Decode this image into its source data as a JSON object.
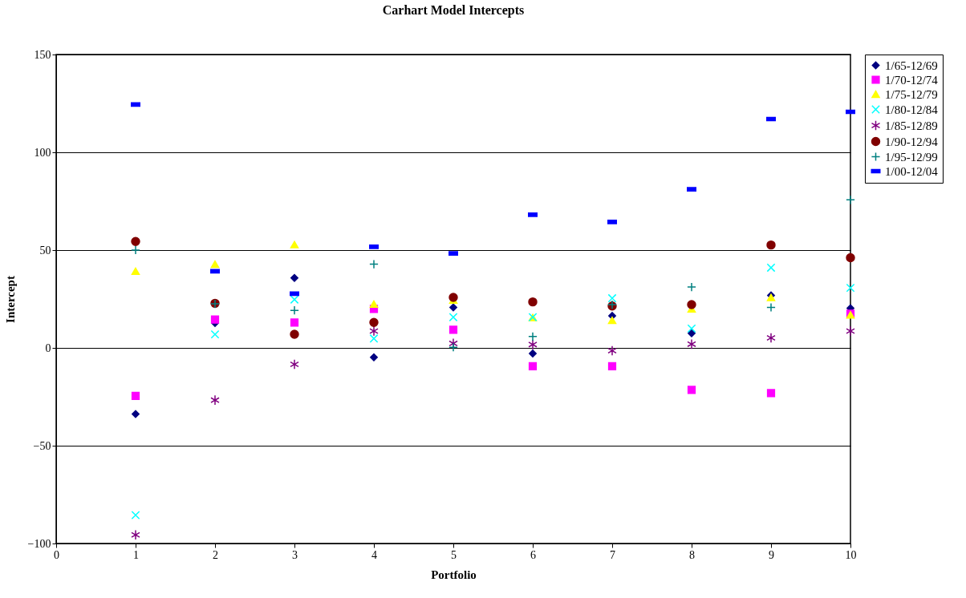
{
  "chart_data": {
    "type": "scatter",
    "title": "Carhart Model Intercepts",
    "xlabel": "Portfolio",
    "ylabel": "Intercept",
    "x": [
      1,
      2,
      3,
      4,
      5,
      6,
      7,
      8,
      9,
      10
    ],
    "xlim": [
      0,
      10
    ],
    "xticks": [
      0,
      1,
      2,
      3,
      4,
      5,
      6,
      7,
      8,
      9,
      10
    ],
    "ylim": [
      -100,
      150
    ],
    "yticks": [
      -100,
      -50,
      0,
      50,
      100,
      150
    ],
    "grid": "y",
    "legend": "right",
    "series": [
      {
        "name": "1/65-12/69",
        "color": "#000080",
        "marker": "diamond",
        "values": [
          -33.8,
          12.7,
          35.8,
          -4.8,
          20.7,
          -2.9,
          16.4,
          7.5,
          26.8,
          20.3
        ]
      },
      {
        "name": "1/70-12/74",
        "color": "#ff00ff",
        "marker": "square",
        "values": [
          -24.5,
          14.5,
          13,
          19.9,
          9.3,
          -9.4,
          -9.4,
          -21.5,
          -23.1,
          17.5
        ]
      },
      {
        "name": "1/75-12/79",
        "color": "#ffff00",
        "marker": "triangle",
        "values": [
          39.2,
          42.8,
          52.8,
          22.4,
          24.4,
          15.5,
          14.1,
          19.9,
          25.8,
          16.9
        ]
      },
      {
        "name": "1/80-12/84",
        "color": "#00ffff",
        "marker": "cross",
        "values": [
          -85.5,
          6.9,
          24.7,
          4.8,
          15.7,
          15.7,
          25.4,
          9.9,
          41,
          30.7
        ]
      },
      {
        "name": "1/85-12/89",
        "color": "#800080",
        "values": [
          -95.6,
          -26.7,
          -8.4,
          8.6,
          2.3,
          1.7,
          -1.4,
          1.9,
          5.1,
          8.6
        ]
      },
      {
        "name": "1/90-12/94",
        "color": "#800000",
        "marker": "circle",
        "values": [
          54.4,
          22.8,
          7,
          13,
          25.8,
          23.5,
          21.4,
          22.1,
          52.6,
          46.1
        ]
      },
      {
        "name": "1/95-12/99",
        "color": "#008080",
        "values": [
          50,
          22.5,
          19.2,
          42.8,
          0.3,
          5.8,
          22.1,
          31.1,
          20.7,
          75.7
        ]
      },
      {
        "name": "1/00-12/04",
        "color": "#0000ff",
        "values": [
          124.4,
          39.2,
          27.7,
          51.7,
          48.3,
          68.1,
          64.4,
          81.1,
          117,
          120.7
        ]
      }
    ]
  }
}
